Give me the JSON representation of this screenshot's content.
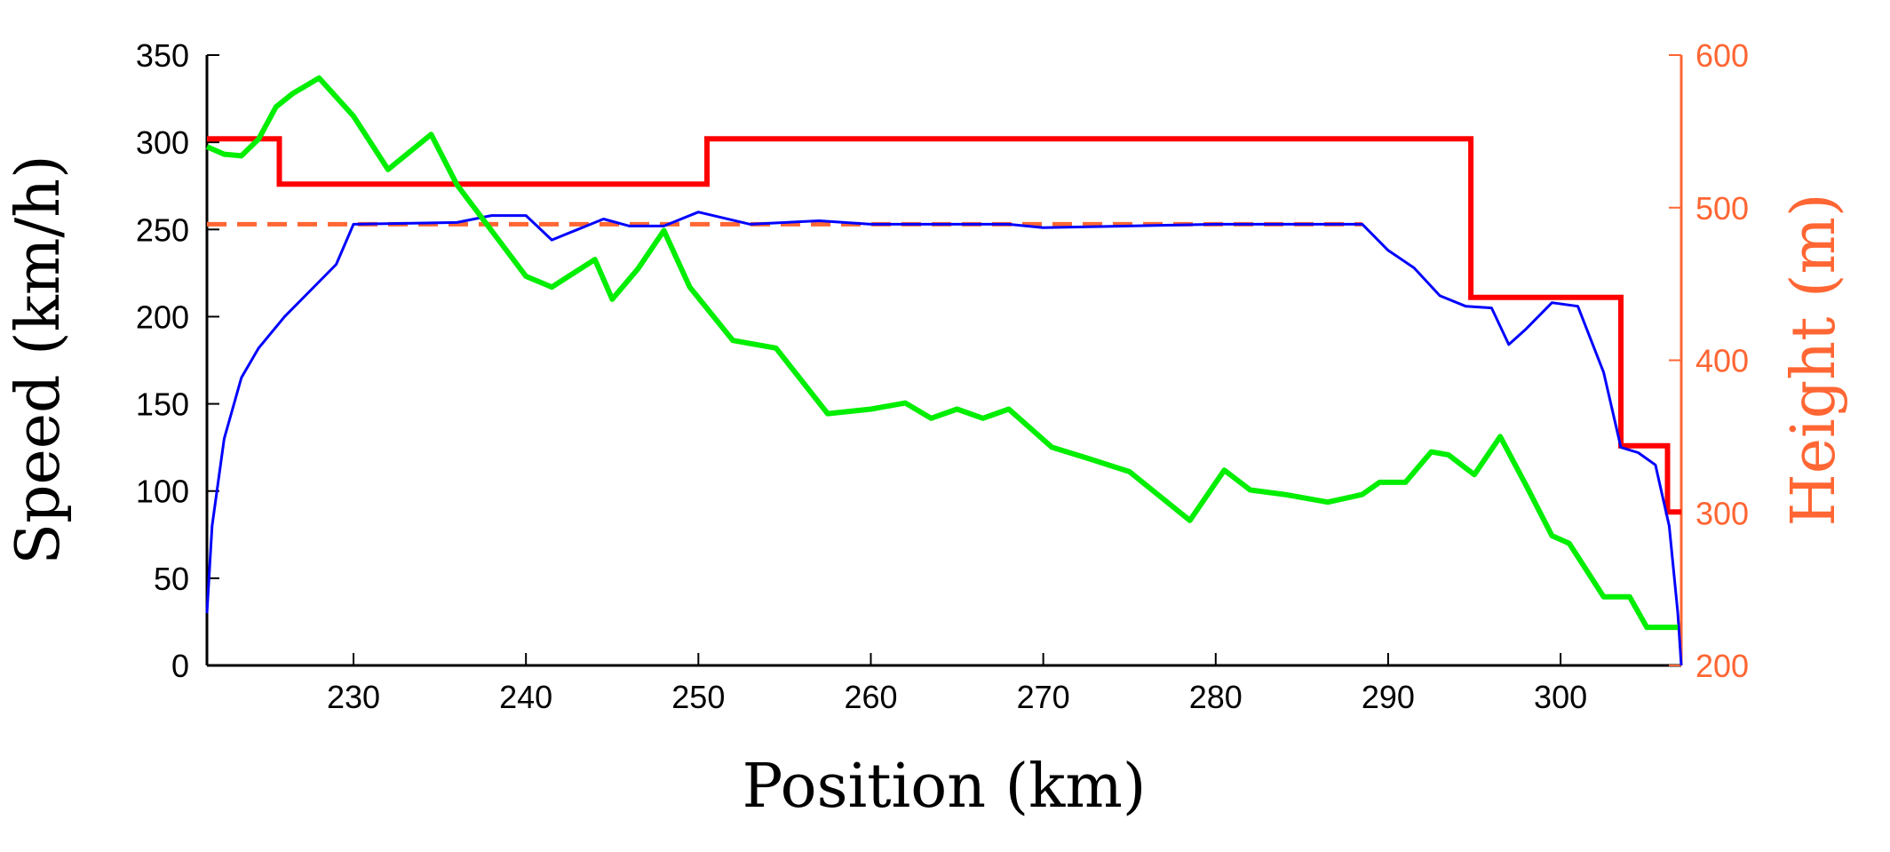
{
  "chart_data": {
    "type": "line",
    "xlabel": "Position (km)",
    "ylabel": "Speed (km/h)",
    "y2label": "Height (m)",
    "xlim": [
      221.5,
      307
    ],
    "ylim": [
      0,
      350
    ],
    "y2lim": [
      200,
      600
    ],
    "xticks": [
      230,
      240,
      250,
      260,
      270,
      280,
      290,
      300
    ],
    "yticks": [
      0,
      50,
      100,
      150,
      200,
      250,
      300,
      350
    ],
    "y2ticks": [
      200,
      300,
      400,
      500,
      600
    ],
    "grid": false,
    "colors": {
      "speed_limit": "#ff0000",
      "target_speed": "#ff6633",
      "speed": "#0000ff",
      "height": "#00ee00",
      "right_axis": "#ff6633"
    },
    "series": [
      {
        "axis": "left",
        "style": "step",
        "color": "#ff0000",
        "width": 6,
        "points": [
          [
            221.5,
            302
          ],
          [
            225.7,
            302
          ],
          [
            225.7,
            276
          ],
          [
            250.5,
            276
          ],
          [
            250.5,
            302
          ],
          [
            294.8,
            302
          ],
          [
            294.8,
            211
          ],
          [
            303.5,
            211
          ],
          [
            303.5,
            126
          ],
          [
            306.2,
            126
          ],
          [
            306.2,
            88
          ],
          [
            307,
            88
          ]
        ]
      },
      {
        "axis": "left",
        "style": "dashed",
        "color": "#ff6633",
        "width": 5,
        "points": [
          [
            221.5,
            253
          ],
          [
            288.5,
            253
          ]
        ]
      },
      {
        "axis": "left",
        "style": "solid",
        "color": "#0000ff",
        "width": 3,
        "points": [
          [
            221.5,
            30
          ],
          [
            221.8,
            80
          ],
          [
            222.5,
            130
          ],
          [
            223.5,
            165
          ],
          [
            224.5,
            182
          ],
          [
            226,
            200
          ],
          [
            227.5,
            215
          ],
          [
            229,
            230
          ],
          [
            230,
            253
          ],
          [
            236,
            254
          ],
          [
            238,
            258
          ],
          [
            240,
            258
          ],
          [
            241.5,
            244
          ],
          [
            243,
            250
          ],
          [
            244.5,
            256
          ],
          [
            246,
            252
          ],
          [
            248,
            252
          ],
          [
            250,
            260
          ],
          [
            253,
            253
          ],
          [
            257,
            255
          ],
          [
            260,
            253
          ],
          [
            268,
            253
          ],
          [
            270,
            251
          ],
          [
            280,
            253
          ],
          [
            288.5,
            253
          ],
          [
            290,
            238
          ],
          [
            291.5,
            228
          ],
          [
            293,
            212
          ],
          [
            294.5,
            206
          ],
          [
            296,
            205
          ],
          [
            297,
            184
          ],
          [
            298,
            193
          ],
          [
            299.5,
            208
          ],
          [
            301,
            206
          ],
          [
            302.5,
            168
          ],
          [
            303.5,
            125
          ],
          [
            304.5,
            122
          ],
          [
            305.5,
            115
          ],
          [
            306.3,
            80
          ],
          [
            306.8,
            30
          ],
          [
            307,
            0
          ]
        ]
      },
      {
        "axis": "right",
        "style": "solid",
        "color": "#00ee00",
        "width": 6,
        "points": [
          [
            221.5,
            540
          ],
          [
            222.5,
            535
          ],
          [
            223.5,
            534
          ],
          [
            224.5,
            545
          ],
          [
            225.5,
            566
          ],
          [
            226.5,
            575
          ],
          [
            228,
            585
          ],
          [
            230,
            560
          ],
          [
            232,
            525
          ],
          [
            234.5,
            548
          ],
          [
            236,
            515
          ],
          [
            238,
            485
          ],
          [
            240,
            455
          ],
          [
            241.5,
            448
          ],
          [
            244,
            466
          ],
          [
            245,
            440
          ],
          [
            246.5,
            460
          ],
          [
            248,
            485
          ],
          [
            249.5,
            448
          ],
          [
            252,
            413
          ],
          [
            254.5,
            408
          ],
          [
            257.5,
            365
          ],
          [
            260,
            368
          ],
          [
            262,
            372
          ],
          [
            263.5,
            362
          ],
          [
            265,
            368
          ],
          [
            266.5,
            362
          ],
          [
            268,
            368
          ],
          [
            270.5,
            343
          ],
          [
            272.5,
            336
          ],
          [
            275,
            327
          ],
          [
            278.5,
            295
          ],
          [
            280.5,
            328
          ],
          [
            282,
            315
          ],
          [
            284,
            312
          ],
          [
            286.5,
            307
          ],
          [
            288.5,
            312
          ],
          [
            289.5,
            320
          ],
          [
            291,
            320
          ],
          [
            292.5,
            340
          ],
          [
            293.5,
            338
          ],
          [
            295,
            325
          ],
          [
            296.5,
            350
          ],
          [
            298,
            318
          ],
          [
            299.5,
            285
          ],
          [
            300.5,
            280
          ],
          [
            302.5,
            245
          ],
          [
            304,
            245
          ],
          [
            305,
            225
          ],
          [
            306.8,
            225
          ]
        ]
      }
    ]
  }
}
